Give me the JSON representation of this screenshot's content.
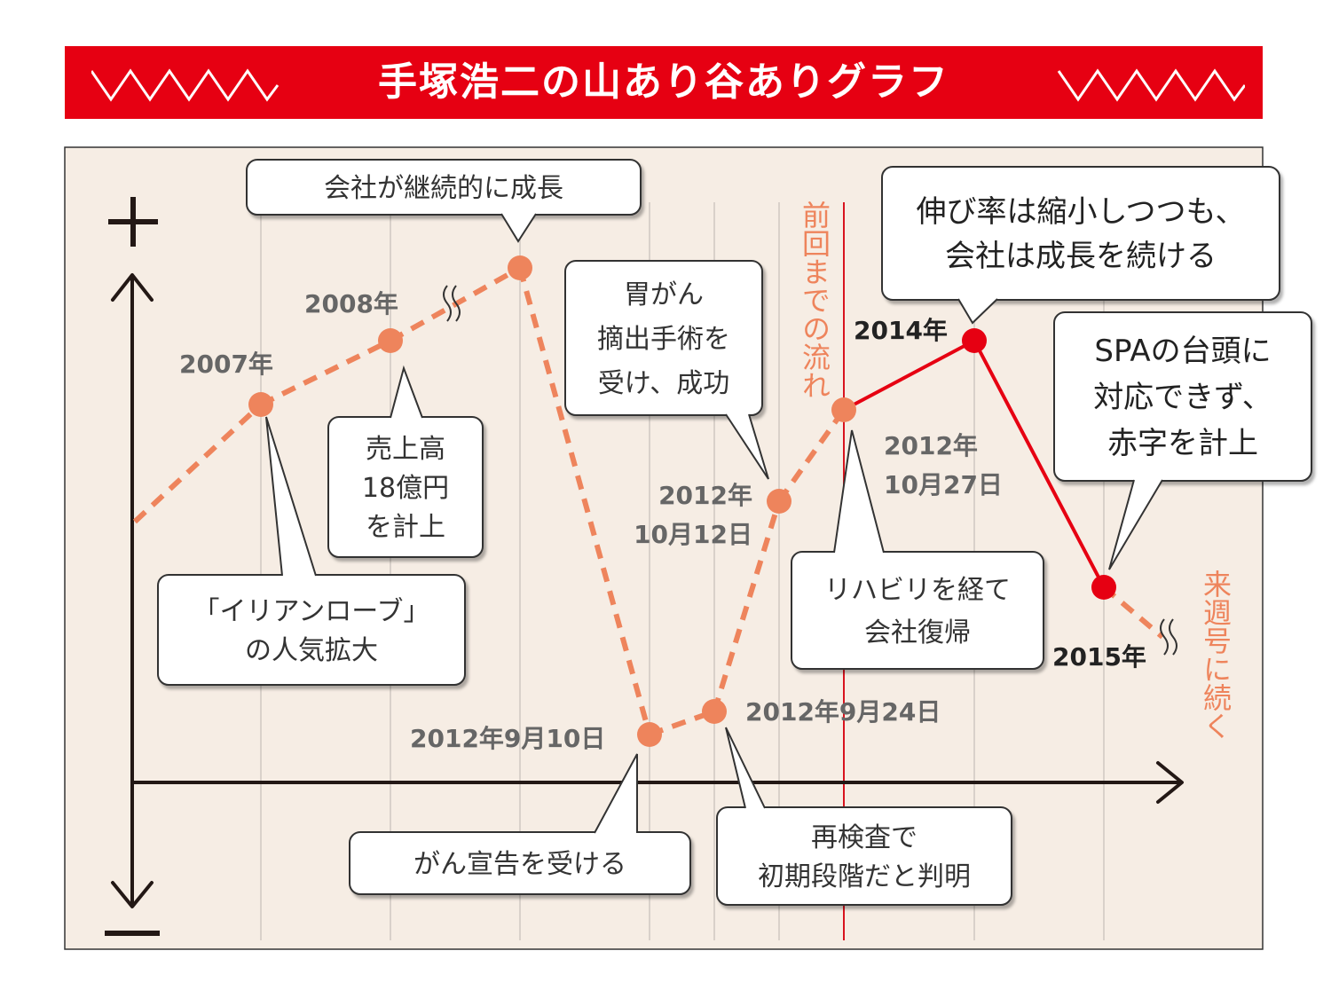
{
  "title": "手塚浩二の山あり谷ありグラフ",
  "colors": {
    "banner": "#e60012",
    "panel_bg": "#f6ede4",
    "past_line": "#ee845c",
    "recent_line": "#e60012",
    "divider": "#d8141f",
    "label_text": "#666666",
    "callout_text": "#333333"
  },
  "axis": {
    "plus": "+",
    "minus": "−"
  },
  "chart_data": {
    "type": "line",
    "y_axis": "up = good, down = bad (no numeric scale)",
    "grid": "vertical lines only",
    "points": [
      {
        "label": "",
        "tone": "past"
      },
      {
        "label": "2007年",
        "tone": "past"
      },
      {
        "label": "2008年",
        "tone": "past"
      },
      {
        "label": "",
        "tone": "past"
      },
      {
        "label": "2012年9月10日",
        "tone": "past"
      },
      {
        "label": "2012年9月24日",
        "tone": "past"
      },
      {
        "label": "2012年10月12日",
        "tone": "past"
      },
      {
        "label": "2012年10月27日",
        "tone": "past"
      },
      {
        "label": "2014年",
        "tone": "recent"
      },
      {
        "label": "2015年",
        "tone": "recent"
      }
    ],
    "point_labels": {
      "y2007": "2007年",
      "y2008": "2008年",
      "d0910": "2012年9月10日",
      "d0924": "2012年9月24日",
      "d1012_line1": "2012年",
      "d1012_line2": "10月12日",
      "d1027_line1": "2012年",
      "d1027_line2": "10月27日",
      "y2014": "2014年",
      "y2015": "2015年"
    },
    "divider_label": "前回までの流れ",
    "continuation_label": "来週号に続く"
  },
  "callouts": {
    "growth": [
      "会社が継続的に成長"
    ],
    "sales": [
      "売上高",
      "18億円",
      "を計上"
    ],
    "popularity": [
      "「イリアンローブ」",
      "の人気拡大"
    ],
    "stomach": [
      "胃がん",
      "摘出手術を",
      "受け、成功"
    ],
    "cancer": [
      "がん宣告を受ける"
    ],
    "recheck": [
      "再検査で",
      "初期段階だと判明"
    ],
    "rehab": [
      "リハビリを経て",
      "会社復帰"
    ],
    "slowing": [
      "伸び率は縮小しつつも、",
      "会社は成長を続ける"
    ],
    "spa": [
      "SPAの台頭に",
      "対応できず、",
      "赤字を計上"
    ]
  }
}
